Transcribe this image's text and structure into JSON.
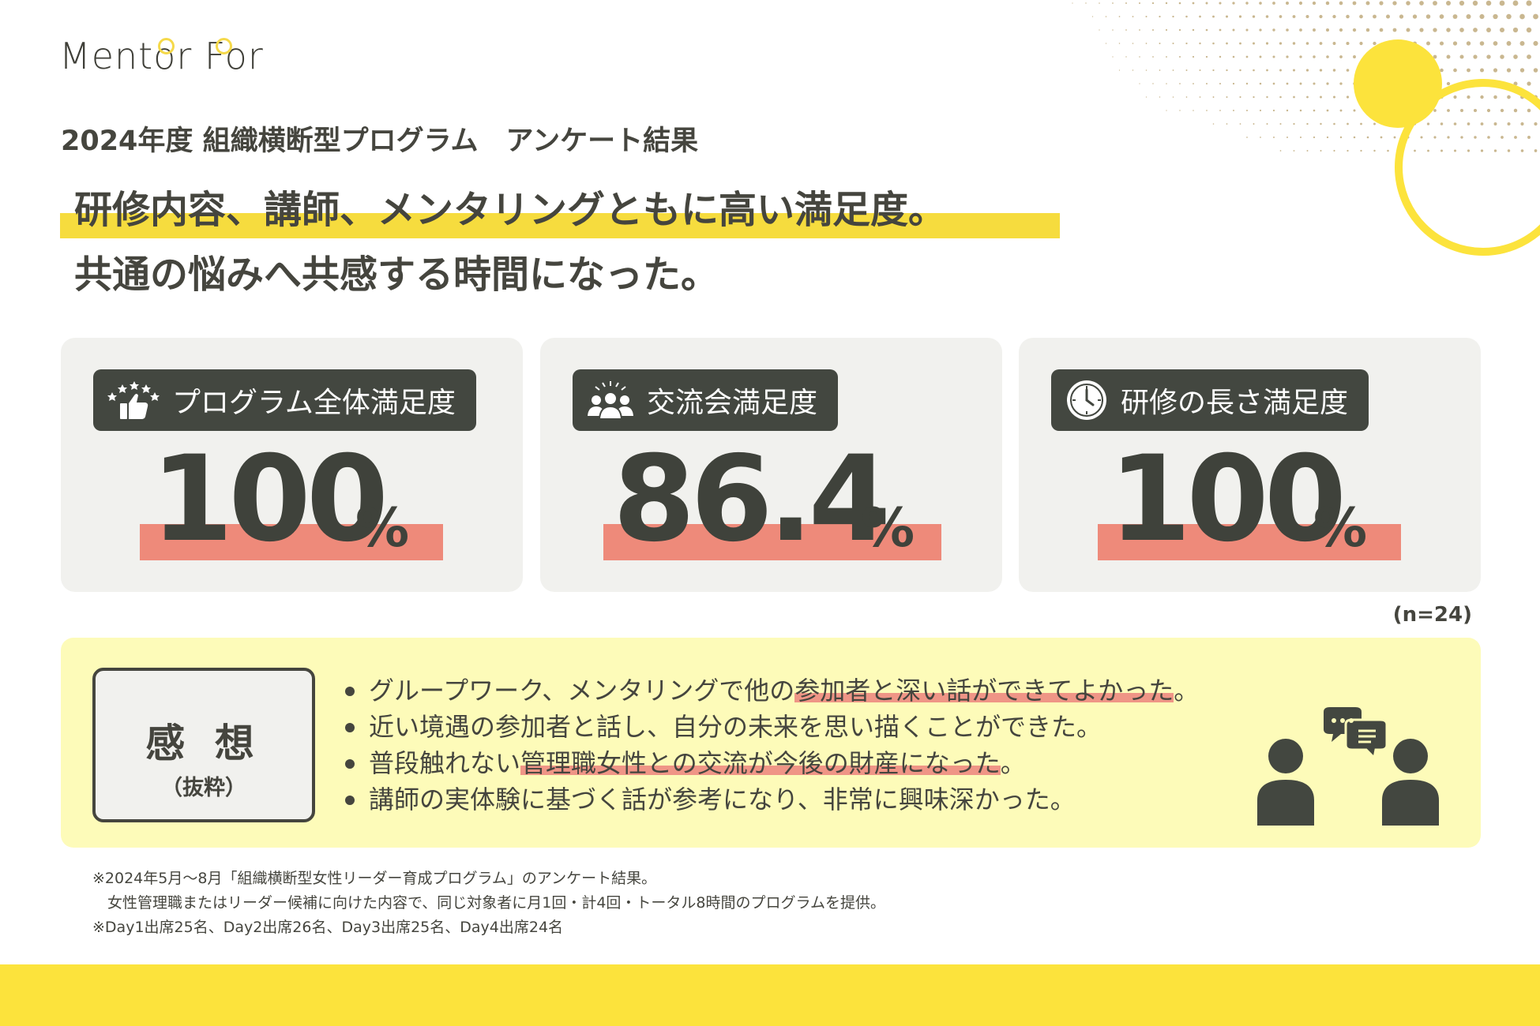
{
  "brand": {
    "logo_text": "Mentor For"
  },
  "survey_title": "2024年度 組織横断型プログラム　アンケート結果",
  "headline": {
    "line1": "研修内容、講師、メンタリングともに高い満足度。",
    "line2": "共通の悩みへ共感する時間になった。"
  },
  "stats": [
    {
      "label": "プログラム全体満足度",
      "icon": "thumbs-up-stars-icon",
      "value": "100",
      "unit": "%"
    },
    {
      "label": "交流会満足度",
      "icon": "group-people-icon",
      "value": "86.4",
      "unit": "%"
    },
    {
      "label": "研修の長さ満足度",
      "icon": "clock-icon",
      "value": "100",
      "unit": "%"
    }
  ],
  "sample_note": "(n=24)",
  "impressions": {
    "title": "感 想",
    "subtitle": "（抜粋）",
    "items": [
      {
        "before": "グループワーク、メンタリングで他の",
        "mark": "参加者と深い話ができてよかった",
        "after": "。"
      },
      {
        "before": "近い境遇の参加者と話し、自分の未来を思い描くことができた。",
        "mark": "",
        "after": ""
      },
      {
        "before": "普段触れない",
        "mark": "管理職女性との交流が今後の財産になった",
        "after": "。"
      },
      {
        "before": "講師の実体験に基づく話が参考になり、非常に興味深かった。",
        "mark": "",
        "after": ""
      }
    ],
    "illustration": "two-people-chat-icon"
  },
  "footnotes": [
    "※2024年5月〜8月「組織横断型女性リーダー育成プログラム」のアンケート結果。",
    "　女性管理職またはリーダー候補に向けた内容で、同じ対象者に月1回・計4回・トータル8時間のプログラムを提供。",
    "※Day1出席25名、Day2出席26名、Day3出席25名、Day4出席24名"
  ],
  "colors": {
    "accent_yellow": "#fce33c",
    "highlight_salmon": "#ee8a7a",
    "dark": "#434740",
    "card_bg": "#f1f1ee",
    "impression_bg": "#fdfbb9",
    "dot_gold": "#c9b790"
  }
}
